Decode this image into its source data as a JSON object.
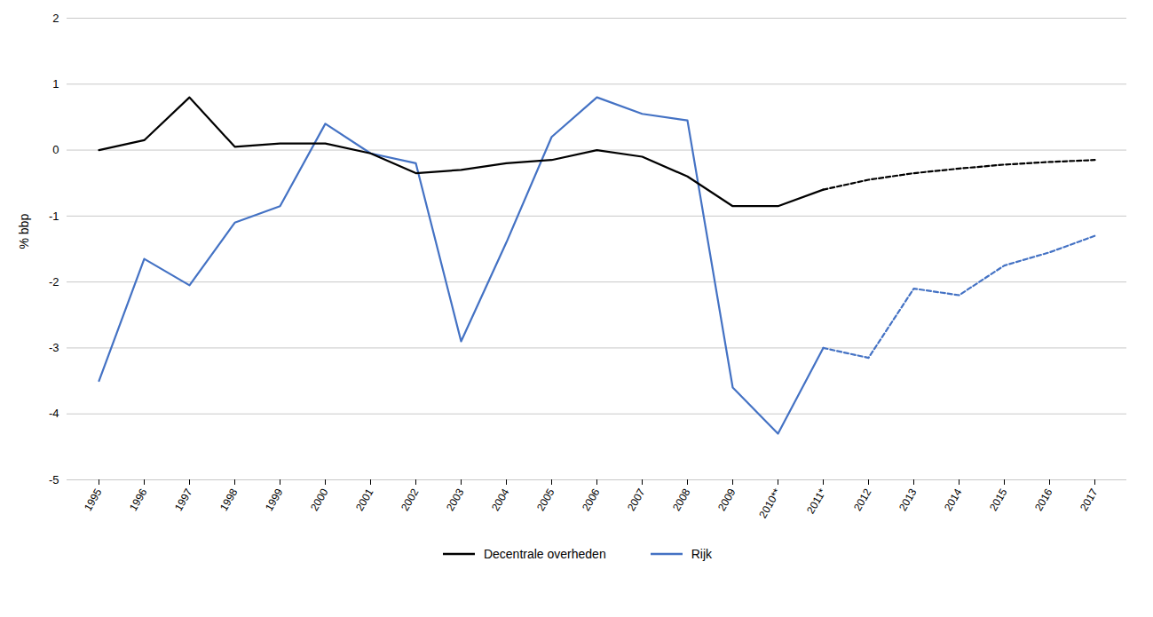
{
  "chart_data": {
    "type": "line",
    "ylabel": "% bbp",
    "categories": [
      "1995",
      "1996",
      "1997",
      "1998",
      "1999",
      "2000",
      "2001",
      "2002",
      "2003",
      "2004",
      "2005",
      "2006",
      "2007",
      "2008",
      "2009",
      "2010**",
      "2011*",
      "2012",
      "2013",
      "2014",
      "2015",
      "2016",
      "2017"
    ],
    "series": [
      {
        "name": "Decentrale overheden",
        "color": "#000000",
        "line_style": "solid",
        "values": [
          0.0,
          0.15,
          0.8,
          0.05,
          0.1,
          0.1,
          -0.05,
          -0.35,
          -0.3,
          -0.2,
          -0.15,
          0.0,
          -0.1,
          -0.4,
          -0.85,
          -0.85,
          -0.6,
          null,
          null,
          null,
          null,
          null,
          null
        ]
      },
      {
        "color": "#000000",
        "line_style": "dashed",
        "values": [
          null,
          null,
          null,
          null,
          null,
          null,
          null,
          null,
          null,
          null,
          null,
          null,
          null,
          null,
          null,
          null,
          -0.6,
          -0.45,
          -0.35,
          -0.28,
          -0.22,
          -0.18,
          -0.15
        ]
      },
      {
        "name": "Rijk",
        "color": "#4472C4",
        "line_style": "solid",
        "values": [
          -3.5,
          -1.65,
          -2.05,
          -1.1,
          -0.85,
          0.4,
          -0.05,
          -0.2,
          -2.9,
          -1.4,
          0.2,
          0.8,
          0.55,
          0.45,
          -3.6,
          -4.3,
          -3.0,
          null,
          null,
          null,
          null,
          null,
          null
        ]
      },
      {
        "color": "#4472C4",
        "line_style": "dashed",
        "values": [
          null,
          null,
          null,
          null,
          null,
          null,
          null,
          null,
          null,
          null,
          null,
          null,
          null,
          null,
          null,
          null,
          -3.0,
          -3.15,
          -2.1,
          -2.2,
          -1.75,
          -1.55,
          -1.3
        ]
      }
    ],
    "ylim": [
      -5,
      2
    ],
    "yticks": [
      -5,
      -4,
      -3,
      -2,
      -1,
      0,
      1,
      2
    ],
    "grid": true,
    "legend": "bottom"
  }
}
